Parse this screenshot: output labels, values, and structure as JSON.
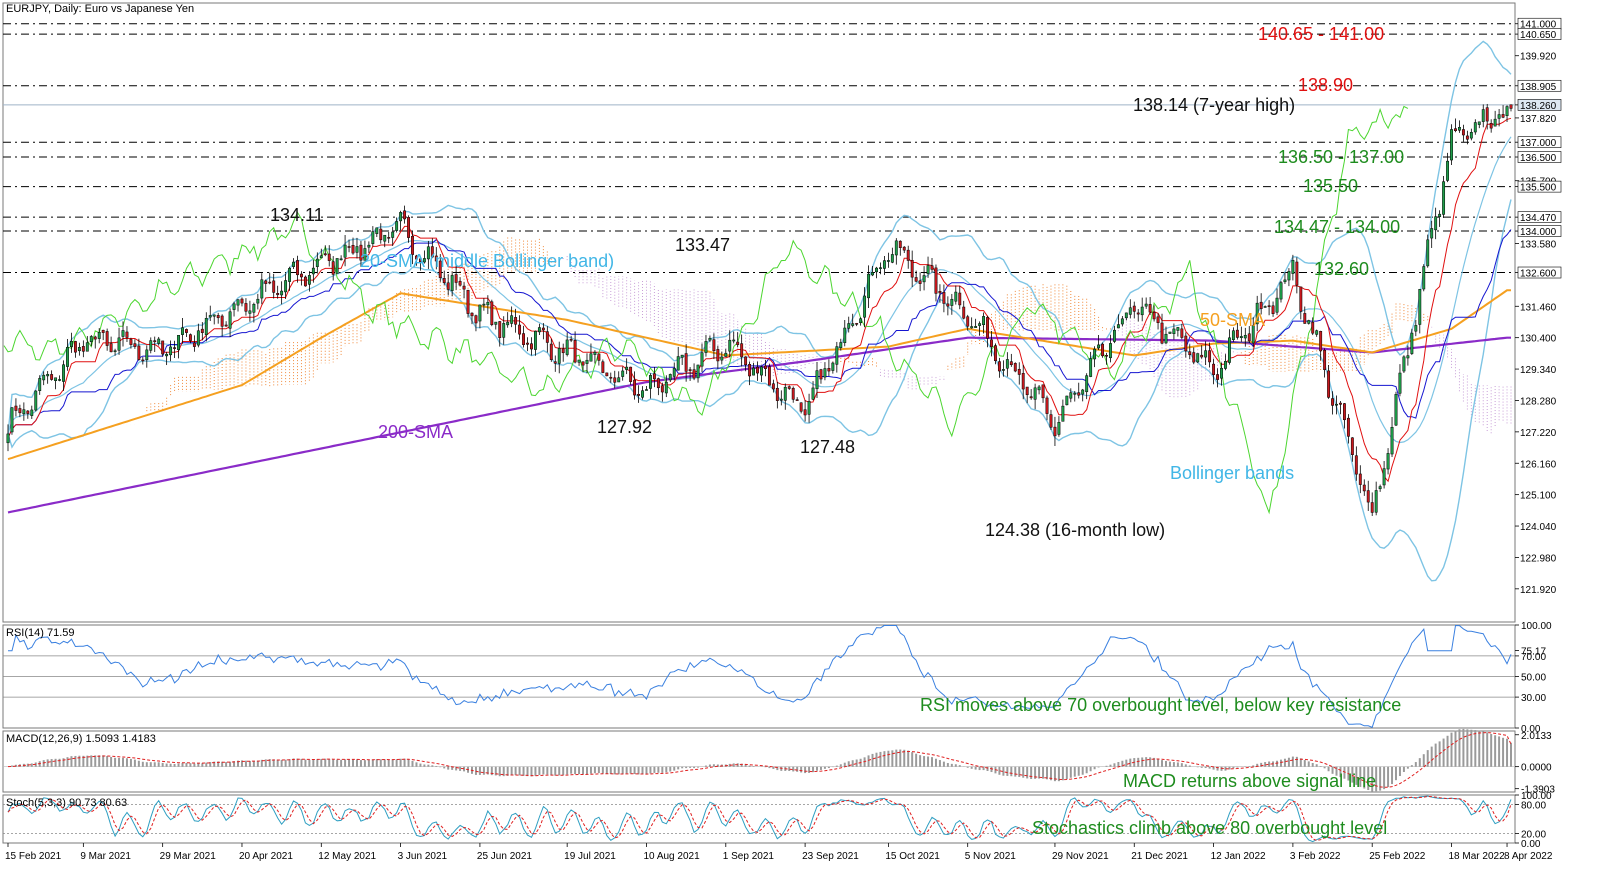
{
  "window_title": "EURJPY, Daily:  Euro vs Japanese Yen",
  "colors": {
    "frame": "#7a7a7a",
    "candle_up": "#1f9e4a",
    "candle_down": "#c8191e",
    "bollinger": "#7ec4e4",
    "sma20_label": "#41b6e6",
    "sma50": "#f5a020",
    "sma200": "#8a2bc8",
    "tenkan": "#e01010",
    "kijun": "#1515d0",
    "chikou": "#4cd630",
    "cloud_bull": "#f08a3c",
    "cloud_bear": "#c9a0d8",
    "rsi": "#3a80e0",
    "macd_hist": "#9a9a9a",
    "signal": "#e02020",
    "stoch_main": "#2f9fc2",
    "stoch_signal": "#e02020",
    "level_red": "#e01010",
    "level_green": "#1e8c1e"
  },
  "chart_data": [
    {
      "type": "candlestick",
      "panel": "price",
      "title": "EURJPY, Daily:  Euro vs Japanese Yen",
      "ylim": [
        120.8,
        141.7
      ],
      "y_ticks": [
        141.0,
        140.65,
        139.92,
        138.905,
        138.26,
        137.82,
        137.0,
        136.5,
        135.7,
        135.5,
        134.47,
        134.0,
        133.58,
        132.6,
        131.46,
        130.4,
        129.34,
        128.28,
        127.22,
        126.16,
        125.1,
        124.04,
        122.98,
        121.92
      ],
      "y_tick_labels": [
        "141.000",
        "140.650",
        "139.920",
        "138.905",
        "138.260",
        "137.820",
        "137.000",
        "136.500",
        "135.700",
        "135.500",
        "134.470",
        "134.000",
        "133.580",
        "132.600",
        "131.460",
        "130.400",
        "129.340",
        "128.280",
        "127.220",
        "126.160",
        "125.100",
        "124.040",
        "122.980",
        "121.920"
      ],
      "highlighted_ticks": [
        "141.000",
        "140.650",
        "138.905",
        "138.260",
        "137.000",
        "136.500",
        "135.500",
        "134.470",
        "134.000",
        "132.600"
      ],
      "current_price": 138.26,
      "x_labels": [
        "15 Feb 2021",
        "9 Mar 2021",
        "29 Mar 2021",
        "20 Apr 2021",
        "12 May 2021",
        "3 Jun 2021",
        "25 Jun 2021",
        "19 Jul 2021",
        "10 Aug 2021",
        "1 Sep 2021",
        "23 Sep 2021",
        "15 Oct 2021",
        "5 Nov 2021",
        "29 Nov 2021",
        "21 Dec 2021",
        "12 Jan 2022",
        "3 Feb 2022",
        "25 Feb 2022",
        "18 Mar 2022",
        "8 Apr 2022"
      ],
      "price_path_anchors": [
        [
          "15 Feb 2021",
          127.4
        ],
        [
          "9 Mar 2021",
          130.3
        ],
        [
          "29 Mar 2021",
          130.0
        ],
        [
          "20 Apr 2021",
          131.5
        ],
        [
          "12 May 2021",
          132.9
        ],
        [
          "3 Jun 2021",
          134.11
        ],
        [
          "25 Jun 2021",
          131.2
        ],
        [
          "19 Jul 2021",
          129.9
        ],
        [
          "10 Aug 2021",
          128.6
        ],
        [
          "1 Sep 2021",
          130.2
        ],
        [
          "23 Sep 2021",
          127.92
        ],
        [
          "15 Oct 2021",
          133.47
        ],
        [
          "5 Nov 2021",
          131.2
        ],
        [
          "29 Nov 2021",
          127.48
        ],
        [
          "21 Dec 2021",
          131.5
        ],
        [
          "12 Jan 2022",
          129.3
        ],
        [
          "3 Feb 2022",
          132.6
        ],
        [
          "25 Feb 2022",
          124.38
        ],
        [
          "18 Mar 2022",
          137.0
        ],
        [
          "8 Apr 2022",
          138.14
        ]
      ],
      "support_resistance": [
        {
          "label": "140.65 - 141.00",
          "values": [
            140.65,
            141.0
          ],
          "color": "red"
        },
        {
          "label": "138.90",
          "values": [
            138.905
          ],
          "color": "red"
        },
        {
          "label": "136.50 - 137.00",
          "values": [
            136.5,
            137.0
          ],
          "color": "green"
        },
        {
          "label": "135.50",
          "values": [
            135.5
          ],
          "color": "green"
        },
        {
          "label": "134.47 - 134.00",
          "values": [
            134.47,
            134.0
          ],
          "color": "green"
        },
        {
          "label": "132.60",
          "values": [
            132.6
          ],
          "color": "green"
        }
      ],
      "annotations": {
        "high_2021": "134.11",
        "oct_high": "133.47",
        "sep_low": "127.92",
        "nov_low": "127.48",
        "seven_year_high": "138.14 (7-year high)",
        "sixteen_month_low": "124.38 (16-month low)",
        "sma20": "20-SMA (middle Bollinger band)",
        "sma50": "50-SMA",
        "sma200": "200-SMA",
        "bollinger": "Bollinger bands"
      },
      "indicator_anchors": {
        "sma200": [
          [
            "15 Feb 2021",
            124.5
          ],
          [
            "10 Aug 2021",
            128.9
          ],
          [
            "23 Sep 2021",
            129.6
          ],
          [
            "5 Nov 2021",
            130.4
          ],
          [
            "12 Jan 2022",
            130.3
          ],
          [
            "25 Feb 2022",
            129.9
          ],
          [
            "8 Apr 2022",
            130.4
          ]
        ],
        "sma50": [
          [
            "15 Feb 2021",
            126.3
          ],
          [
            "20 Apr 2021",
            128.8
          ],
          [
            "12 May 2021",
            130.4
          ],
          [
            "3 Jun 2021",
            131.9
          ],
          [
            "19 Jul 2021",
            131.0
          ],
          [
            "1 Sep 2021",
            129.8
          ],
          [
            "15 Oct 2021",
            130.1
          ],
          [
            "5 Nov 2021",
            130.7
          ],
          [
            "21 Dec 2021",
            129.8
          ],
          [
            "12 Jan 2022",
            130.2
          ],
          [
            "3 Feb 2022",
            130.3
          ],
          [
            "25 Feb 2022",
            129.9
          ],
          [
            "18 Mar 2022",
            130.7
          ],
          [
            "8 Apr 2022",
            132.0
          ]
        ]
      }
    },
    {
      "type": "line",
      "panel": "rsi",
      "header": "RSI(14) 71.59",
      "ylim": [
        0,
        100
      ],
      "y_ticks": [
        100,
        75.17,
        70,
        50,
        30,
        0
      ],
      "y_tick_labels": [
        "100.00",
        "75.17",
        "70.00",
        "50.00",
        "30.00",
        "0.00"
      ],
      "levels": [
        70,
        50,
        30
      ],
      "last": 71.59,
      "note": "RSI moves above 70 overbought level, below key resistance"
    },
    {
      "type": "bar",
      "panel": "macd",
      "header": "MACD(12,26,9) 1.5093 1.4183",
      "ylim": [
        -1.6,
        2.25
      ],
      "y_ticks": [
        2.0133,
        0.0,
        -1.3903
      ],
      "y_tick_labels": [
        "2.0133",
        "0.0000",
        "-1.3903"
      ],
      "macd_last": 1.5093,
      "signal_last": 1.4183,
      "note": "MACD returns above signal line"
    },
    {
      "type": "line",
      "panel": "stochastic",
      "header": "Stoch(5,3,3) 90.73 80.63",
      "ylim": [
        0,
        100
      ],
      "y_ticks": [
        100,
        80,
        20,
        0
      ],
      "y_tick_labels": [
        "100.00",
        "80.00",
        "20.00",
        "0.00"
      ],
      "levels": [
        80,
        20
      ],
      "main_last": 90.73,
      "signal_last": 80.63,
      "note": "Stochastics climb above 80 overbought level"
    }
  ]
}
